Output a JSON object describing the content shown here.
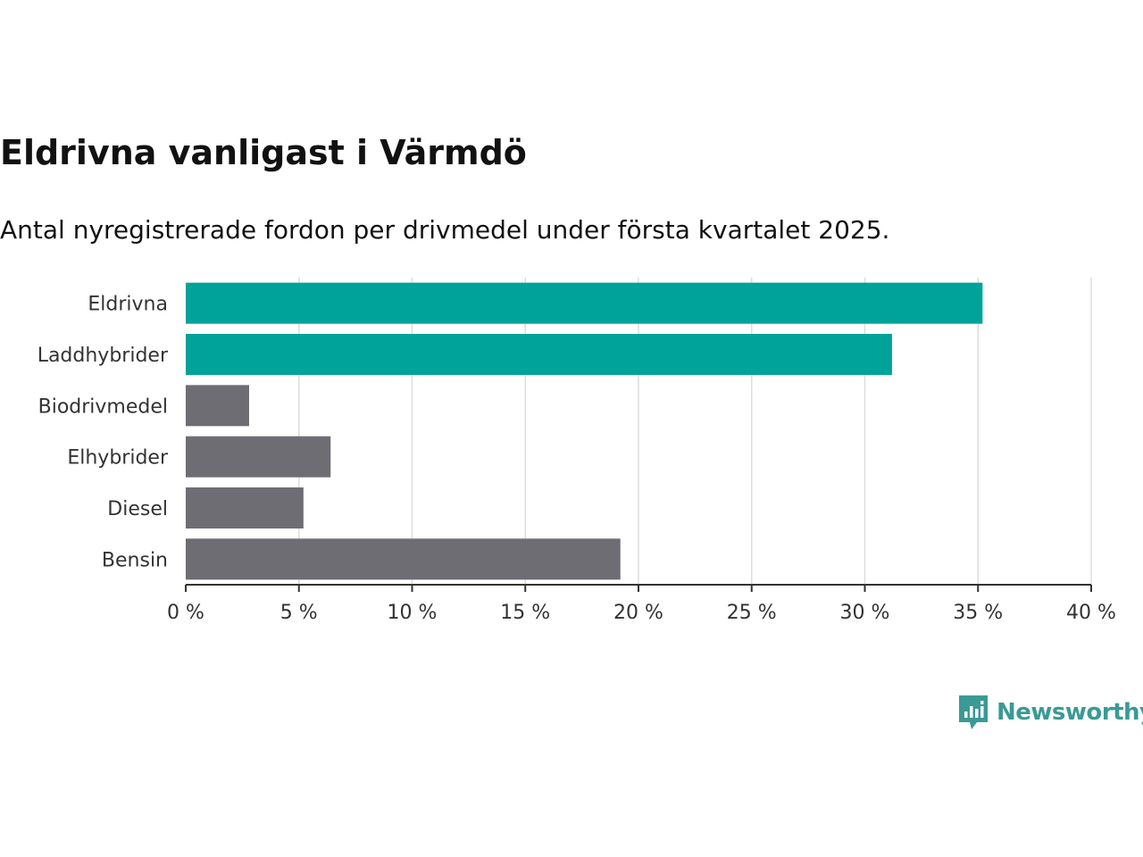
{
  "header": {
    "title": "Eldrivna vanligast i Värmdö",
    "subtitle": "Antal nyregistrerade fordon per drivmedel under första kvartalet 2025."
  },
  "brand": {
    "name": "Newsworthy",
    "icon": "newsworthy-logo-icon",
    "color": "#3a9a94"
  },
  "colors": {
    "highlight": "#00a39a",
    "default": "#6e6d74",
    "grid": "#dddddd",
    "axis": "#333333"
  },
  "chart_data": {
    "type": "bar",
    "orientation": "horizontal",
    "title": "Eldrivna vanligast i Värmdö",
    "subtitle": "Antal nyregistrerade fordon per drivmedel under första kvartalet 2025.",
    "categories": [
      "Eldrivna",
      "Laddhybrider",
      "Biodrivmedel",
      "Elhybrider",
      "Diesel",
      "Bensin"
    ],
    "values": [
      35.2,
      31.2,
      2.8,
      6.4,
      5.2,
      19.2
    ],
    "highlighted": [
      true,
      true,
      false,
      false,
      false,
      false
    ],
    "unit": "%",
    "xlim": [
      0,
      40
    ],
    "xticks": [
      0,
      5,
      10,
      15,
      20,
      25,
      30,
      35,
      40
    ],
    "xtick_labels": [
      "0 %",
      "5 %",
      "10 %",
      "15 %",
      "20 %",
      "25 %",
      "30 %",
      "35 %",
      "40 %"
    ],
    "xlabel": "",
    "ylabel": "",
    "grid": "vertical",
    "legend": "none"
  }
}
